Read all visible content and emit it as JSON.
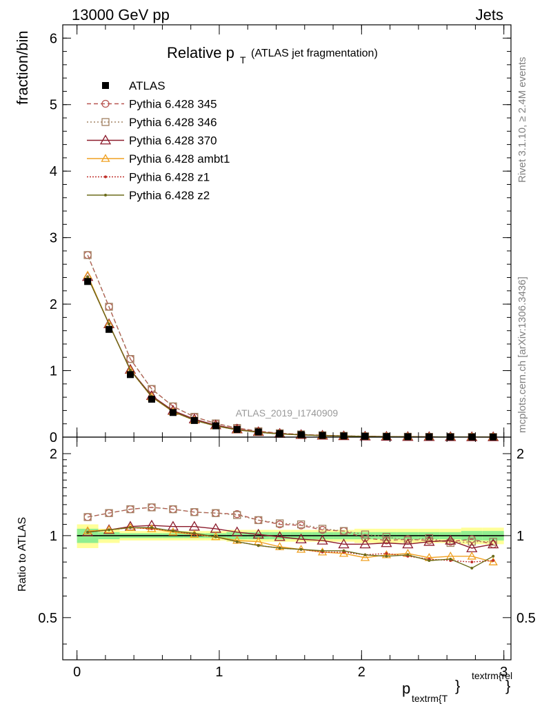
{
  "header": {
    "left": "13000 GeV pp",
    "right": "Jets"
  },
  "side_text": {
    "top": "Rivet 3.1.10, ≥ 2.4M events",
    "bottom": "mcplots.cern.ch [arXiv:1306.3436]"
  },
  "watermark": "ATLAS_2019_I1740909",
  "chart_data": {
    "type": "line",
    "title_main": "Relative p",
    "title_sub": "T",
    "title_rest": "(ATLAS jet fragmentation)",
    "ylabel_top": "fraction/bin",
    "ylabel_bottom": "Ratio to ATLAS",
    "xlabel_main": "p",
    "xlabel_sub": "textrm{T",
    "xlabel_brace": "}",
    "xlabel_sup": "textrm{rel",
    "xlabel_close": "}",
    "xlim": [
      -0.1,
      3.05
    ],
    "ylim_top": [
      0,
      6.2
    ],
    "ylim_bottom_log": [
      0.35,
      2.3
    ],
    "xticks": [
      "0",
      "1",
      "2",
      "3"
    ],
    "yticks_top": [
      "0",
      "1",
      "2",
      "3",
      "4",
      "5",
      "6"
    ],
    "yticks_bottom": [
      "0.5",
      "1",
      "2"
    ],
    "x": [
      0.075,
      0.225,
      0.375,
      0.525,
      0.675,
      0.825,
      0.975,
      1.125,
      1.275,
      1.425,
      1.575,
      1.725,
      1.875,
      2.025,
      2.175,
      2.325,
      2.475,
      2.625,
      2.775,
      2.925
    ],
    "bin_edges": [
      0,
      0.15,
      0.3,
      0.45,
      0.6,
      0.75,
      0.9,
      1.05,
      1.2,
      1.35,
      1.5,
      1.65,
      1.8,
      1.95,
      2.1,
      2.25,
      2.4,
      2.55,
      2.7,
      2.85,
      3.0
    ],
    "data_values": [
      2.34,
      1.62,
      0.94,
      0.57,
      0.37,
      0.25,
      0.17,
      0.115,
      0.078,
      0.053,
      0.037,
      0.026,
      0.018,
      0.0125,
      0.0088,
      0.0062,
      0.0044,
      0.0031,
      0.0022,
      0.0016
    ],
    "band_inner": [
      0.06,
      0.03,
      0.02,
      0.02,
      0.02,
      0.02,
      0.02,
      0.03,
      0.03,
      0.03,
      0.03,
      0.03,
      0.03,
      0.03,
      0.03,
      0.03,
      0.03,
      0.03,
      0.04,
      0.04
    ],
    "band_outer": [
      0.1,
      0.06,
      0.04,
      0.04,
      0.04,
      0.04,
      0.04,
      0.05,
      0.05,
      0.05,
      0.05,
      0.05,
      0.05,
      0.06,
      0.06,
      0.06,
      0.06,
      0.06,
      0.07,
      0.07
    ],
    "series": [
      {
        "name": "ATLAS",
        "color": "#000000",
        "marker": "square",
        "dash": "none",
        "values": [
          2.34,
          1.62,
          0.94,
          0.57,
          0.37,
          0.25,
          0.17,
          0.115,
          0.078,
          0.053,
          0.037,
          0.026,
          0.018,
          0.0125,
          0.0088,
          0.0062,
          0.0044,
          0.0031,
          0.0022,
          0.0016
        ]
      },
      {
        "name": "Pythia 6.428 345",
        "color": "#b85450",
        "marker": "circle",
        "dash": "6,4",
        "ratio": [
          1.17,
          1.21,
          1.25,
          1.27,
          1.25,
          1.22,
          1.21,
          1.2,
          1.14,
          1.1,
          1.09,
          1.05,
          1.04,
          0.98,
          0.96,
          0.97,
          0.96,
          0.95,
          0.97,
          0.93
        ]
      },
      {
        "name": "Pythia 6.428 346",
        "color": "#a08060",
        "marker": "open-square",
        "dash": "2,3",
        "ratio": [
          1.17,
          1.21,
          1.25,
          1.27,
          1.25,
          1.22,
          1.21,
          1.19,
          1.14,
          1.11,
          1.1,
          1.06,
          1.04,
          1.01,
          0.99,
          0.96,
          0.98,
          0.94,
          0.95,
          0.95
        ]
      },
      {
        "name": "Pythia 6.428 370",
        "color": "#8b1a2b",
        "marker": "triangle",
        "dash": "none",
        "ratio": [
          1.03,
          1.05,
          1.08,
          1.09,
          1.08,
          1.08,
          1.06,
          1.03,
          1.01,
          0.99,
          0.97,
          0.96,
          0.93,
          0.93,
          0.94,
          0.93,
          0.95,
          0.96,
          0.9,
          0.93
        ]
      },
      {
        "name": "Pythia 6.428 ambt1",
        "color": "#f0a020",
        "marker": "open-triangle",
        "dash": "none",
        "ratio": [
          1.04,
          1.05,
          1.07,
          1.06,
          1.03,
          1.01,
          0.99,
          0.96,
          0.95,
          0.91,
          0.89,
          0.87,
          0.86,
          0.83,
          0.85,
          0.86,
          0.83,
          0.84,
          0.84,
          0.8
        ]
      },
      {
        "name": "Pythia 6.428 z1",
        "color": "#c0302a",
        "marker": "dot",
        "dash": "2,2",
        "ratio": [
          1.03,
          1.05,
          1.07,
          1.06,
          1.04,
          1.01,
          0.99,
          0.95,
          0.92,
          0.9,
          0.89,
          0.87,
          0.87,
          0.85,
          0.86,
          0.84,
          0.82,
          0.81,
          0.8,
          0.81
        ]
      },
      {
        "name": "Pythia 6.428 z2",
        "color": "#6b6b1a",
        "marker": "dot",
        "dash": "none",
        "ratio": [
          1.03,
          1.05,
          1.07,
          1.07,
          1.04,
          1.02,
          0.99,
          0.95,
          0.92,
          0.9,
          0.89,
          0.88,
          0.88,
          0.85,
          0.84,
          0.85,
          0.81,
          0.82,
          0.76,
          0.84
        ]
      }
    ]
  }
}
